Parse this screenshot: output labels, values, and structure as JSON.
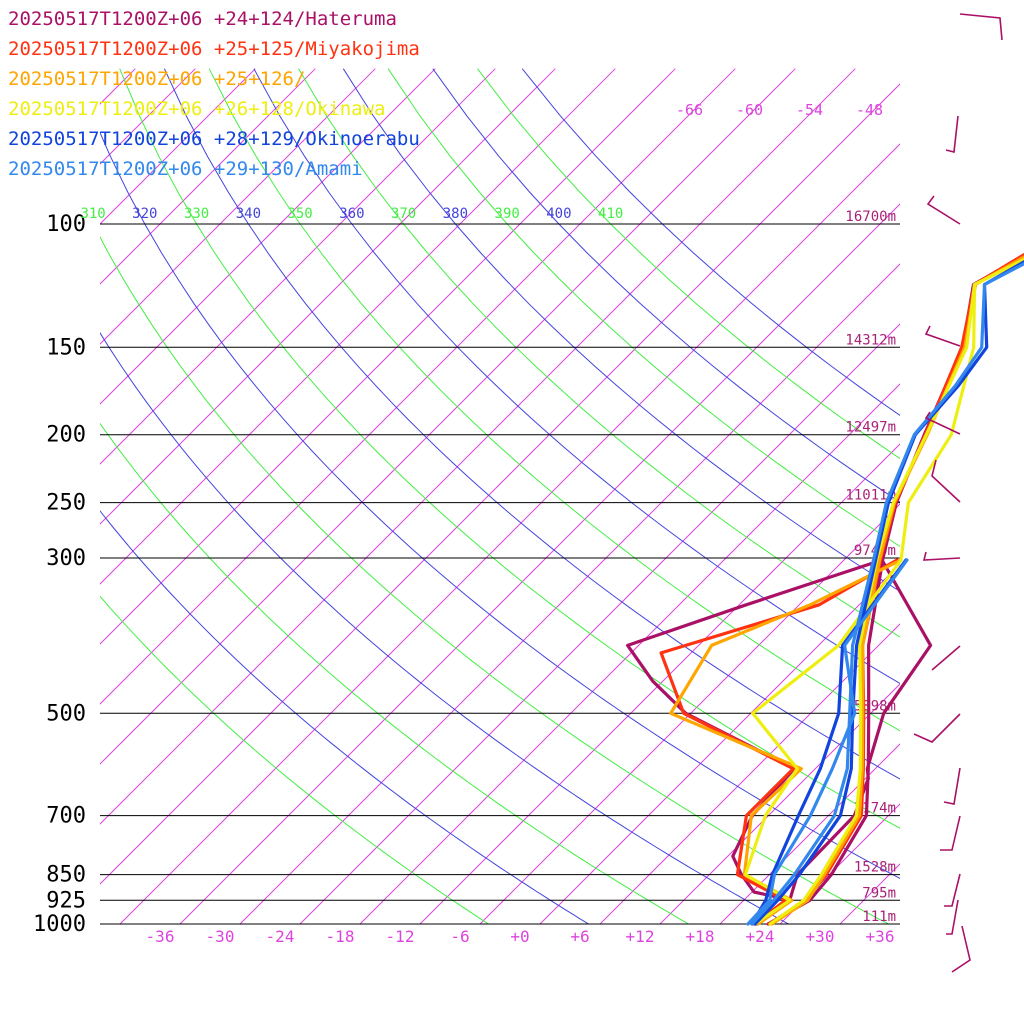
{
  "chart_data": {
    "type": "line",
    "legend_position": "top-left",
    "xlim": [
      -42,
      38
    ],
    "ylim": [
      1000,
      100
    ],
    "y_log": true,
    "x_ticks": [
      "-36",
      "-30",
      "-24",
      "-18",
      "-12",
      "-6",
      "+0",
      "+6",
      "+12",
      "+18",
      "+24",
      "+30",
      "+36"
    ],
    "x_tick_values": [
      -36,
      -30,
      -24,
      -18,
      -12,
      -6,
      0,
      6,
      12,
      18,
      24,
      30,
      36
    ],
    "p_levels": [
      100,
      150,
      200,
      250,
      300,
      500,
      700,
      850,
      925,
      1000
    ],
    "p_labels": [
      "100",
      "150",
      "200",
      "250",
      "300",
      "500",
      "700",
      "850",
      "925",
      "1000"
    ],
    "heights": [
      "16700m",
      "14312m",
      "12497m",
      "11011m",
      "9740m",
      "5898m",
      "3174m",
      "1528m",
      "795m",
      "111m"
    ],
    "theta_labels": [
      "310",
      "320",
      "330",
      "340",
      "350",
      "360",
      "370",
      "380",
      "390",
      "400",
      "410"
    ],
    "theta_values": [
      310,
      320,
      330,
      340,
      350,
      360,
      370,
      380,
      390,
      400,
      410
    ],
    "temp_labels": [
      "-66",
      "-60",
      "-54",
      "-48"
    ],
    "temp_label_values": [
      -66,
      -60,
      -54,
      -48
    ],
    "colors": {
      "isotherm": "#dd44dd",
      "theta_even": "#4444dd",
      "theta_odd": "#44ee44",
      "isobar": "#000000",
      "pressure_text": "#000000",
      "axis_text": "#dd44dd",
      "height_text": "#aa2277",
      "wind": "#aa1166"
    },
    "series": [
      {
        "name": "20250517T1200Z+06 +24+124/Hateruma",
        "color": "#aa1166",
        "points": [
          [
            1000,
            23.6
          ],
          [
            925,
            24.8
          ],
          [
            900,
            20.2
          ],
          [
            850,
            17.2
          ],
          [
            800,
            14.5
          ],
          [
            700,
            12.4
          ],
          [
            600,
            11.9
          ],
          [
            500,
            -4.5
          ],
          [
            450,
            -11
          ],
          [
            400,
            -17.1
          ],
          [
            350,
            -9.3
          ],
          [
            302,
            -0.2
          ],
          [
            400,
            13.2
          ],
          [
            500,
            15.3
          ],
          [
            600,
            19.2
          ],
          [
            620,
            20.3
          ],
          [
            700,
            22.6
          ],
          [
            850,
            22.8
          ],
          [
            925,
            24.6
          ],
          [
            1000,
            23.8
          ]
        ],
        "profile": [
          [
            100,
            -14
          ],
          [
            122,
            -18.6
          ],
          [
            150,
            -13.4
          ],
          [
            200,
            -8.5
          ],
          [
            250,
            -4.5
          ],
          [
            300,
            -0.3
          ],
          [
            400,
            7
          ],
          [
            500,
            13.8
          ],
          [
            600,
            19.3
          ],
          [
            700,
            23.8
          ],
          [
            850,
            26.2
          ],
          [
            925,
            26.6
          ],
          [
            1000,
            24.8
          ]
        ]
      },
      {
        "name": "20250517T1200Z+06 +25+125/Miyakojima",
        "color": "#ff3311",
        "points": [
          [
            1000,
            23.4
          ],
          [
            925,
            24.2
          ],
          [
            850,
            16.8
          ],
          [
            700,
            11.8
          ],
          [
            600,
            11.8
          ],
          [
            500,
            -4.7
          ],
          [
            410,
            -13
          ],
          [
            350,
            -2
          ],
          [
            302,
            1.3
          ]
        ],
        "profile": [
          [
            100,
            -14.5
          ],
          [
            122,
            -18.5
          ],
          [
            150,
            -13.5
          ],
          [
            200,
            -8.4
          ],
          [
            250,
            -4.6
          ],
          [
            300,
            -0.5
          ],
          [
            400,
            6.4
          ],
          [
            500,
            13.3
          ],
          [
            600,
            18.8
          ],
          [
            700,
            23.3
          ],
          [
            850,
            25.7
          ],
          [
            925,
            26.2
          ],
          [
            1000,
            24.9
          ]
        ]
      },
      {
        "name": "20250517T1200Z+06 +25+126/",
        "color": "#ffa500",
        "points": [
          [
            1000,
            23.8
          ],
          [
            925,
            24.8
          ],
          [
            850,
            17.5
          ],
          [
            700,
            12.3
          ],
          [
            600,
            12.6
          ],
          [
            500,
            -6
          ],
          [
            400,
            -8.7
          ],
          [
            350,
            -2.9
          ],
          [
            302,
            1.7
          ]
        ],
        "profile": [
          [
            100,
            -13.8
          ],
          [
            122,
            -18.4
          ],
          [
            150,
            -13.2
          ],
          [
            200,
            -8.2
          ],
          [
            250,
            -4.7
          ],
          [
            300,
            -0.6
          ],
          [
            400,
            6.4
          ],
          [
            500,
            13.2
          ],
          [
            600,
            18.7
          ],
          [
            700,
            23.1
          ],
          [
            850,
            25.5
          ],
          [
            925,
            26.4
          ],
          [
            1000,
            25.2
          ]
        ]
      },
      {
        "name": "20250517T1200Z+06 +26+128/Okinawa",
        "color": "#eeee11",
        "points": [
          [
            1000,
            23.5
          ],
          [
            925,
            24.6
          ],
          [
            850,
            17.6
          ],
          [
            700,
            13.7
          ],
          [
            600,
            12.2
          ],
          [
            500,
            2.2
          ],
          [
            400,
            4
          ],
          [
            302,
            1.7
          ],
          [
            250,
            -3.3
          ],
          [
            200,
            -5.8
          ],
          [
            150,
            -12.3
          ],
          [
            122,
            -18.5
          ],
          [
            100,
            -12.5
          ]
        ],
        "profile": [
          [
            100,
            -12.5
          ],
          [
            122,
            -18.5
          ],
          [
            150,
            -13
          ],
          [
            200,
            -8.3
          ],
          [
            250,
            -4.8
          ],
          [
            300,
            -0.9
          ],
          [
            400,
            6.1
          ],
          [
            500,
            13
          ],
          [
            600,
            18.5
          ],
          [
            700,
            22.8
          ],
          [
            850,
            25.2
          ],
          [
            925,
            26
          ],
          [
            1000,
            25
          ]
        ]
      },
      {
        "name": "20250517T1200Z+06 +28+129/Okinoerabu",
        "color": "#1144dd",
        "points": [
          [
            1000,
            23.2
          ],
          [
            925,
            22.2
          ],
          [
            850,
            20.3
          ],
          [
            700,
            17
          ],
          [
            600,
            14.5
          ],
          [
            500,
            10.8
          ],
          [
            400,
            4.4
          ],
          [
            302,
            2.2
          ]
        ],
        "profile": [
          [
            100,
            -13
          ],
          [
            122,
            -17.5
          ],
          [
            150,
            -11
          ],
          [
            170,
            -10
          ],
          [
            200,
            -9.4
          ],
          [
            250,
            -5.3
          ],
          [
            300,
            -1
          ],
          [
            400,
            5.8
          ],
          [
            500,
            12.2
          ],
          [
            600,
            17.6
          ],
          [
            700,
            21.2
          ],
          [
            850,
            23
          ],
          [
            925,
            23.4
          ],
          [
            1000,
            23.5
          ]
        ]
      },
      {
        "name": "20250517T1200Z+06 +29+130/Amami",
        "color": "#3388ee",
        "points": [
          [
            1000,
            22.8
          ],
          [
            925,
            22.6
          ],
          [
            850,
            20.5
          ],
          [
            700,
            18.2
          ],
          [
            600,
            15.7
          ],
          [
            500,
            12.4
          ],
          [
            400,
            4.6
          ],
          [
            302,
            2.3
          ]
        ],
        "profile": [
          [
            100,
            -12
          ],
          [
            122,
            -17.5
          ],
          [
            150,
            -11.5
          ],
          [
            170,
            -10.3
          ],
          [
            200,
            -9.5
          ],
          [
            250,
            -5.5
          ],
          [
            300,
            -1.2
          ],
          [
            400,
            5.4
          ],
          [
            500,
            11.9
          ],
          [
            600,
            17.2
          ],
          [
            700,
            20.6
          ],
          [
            850,
            22.5
          ],
          [
            925,
            23
          ],
          [
            1000,
            23.2
          ]
        ]
      }
    ]
  }
}
